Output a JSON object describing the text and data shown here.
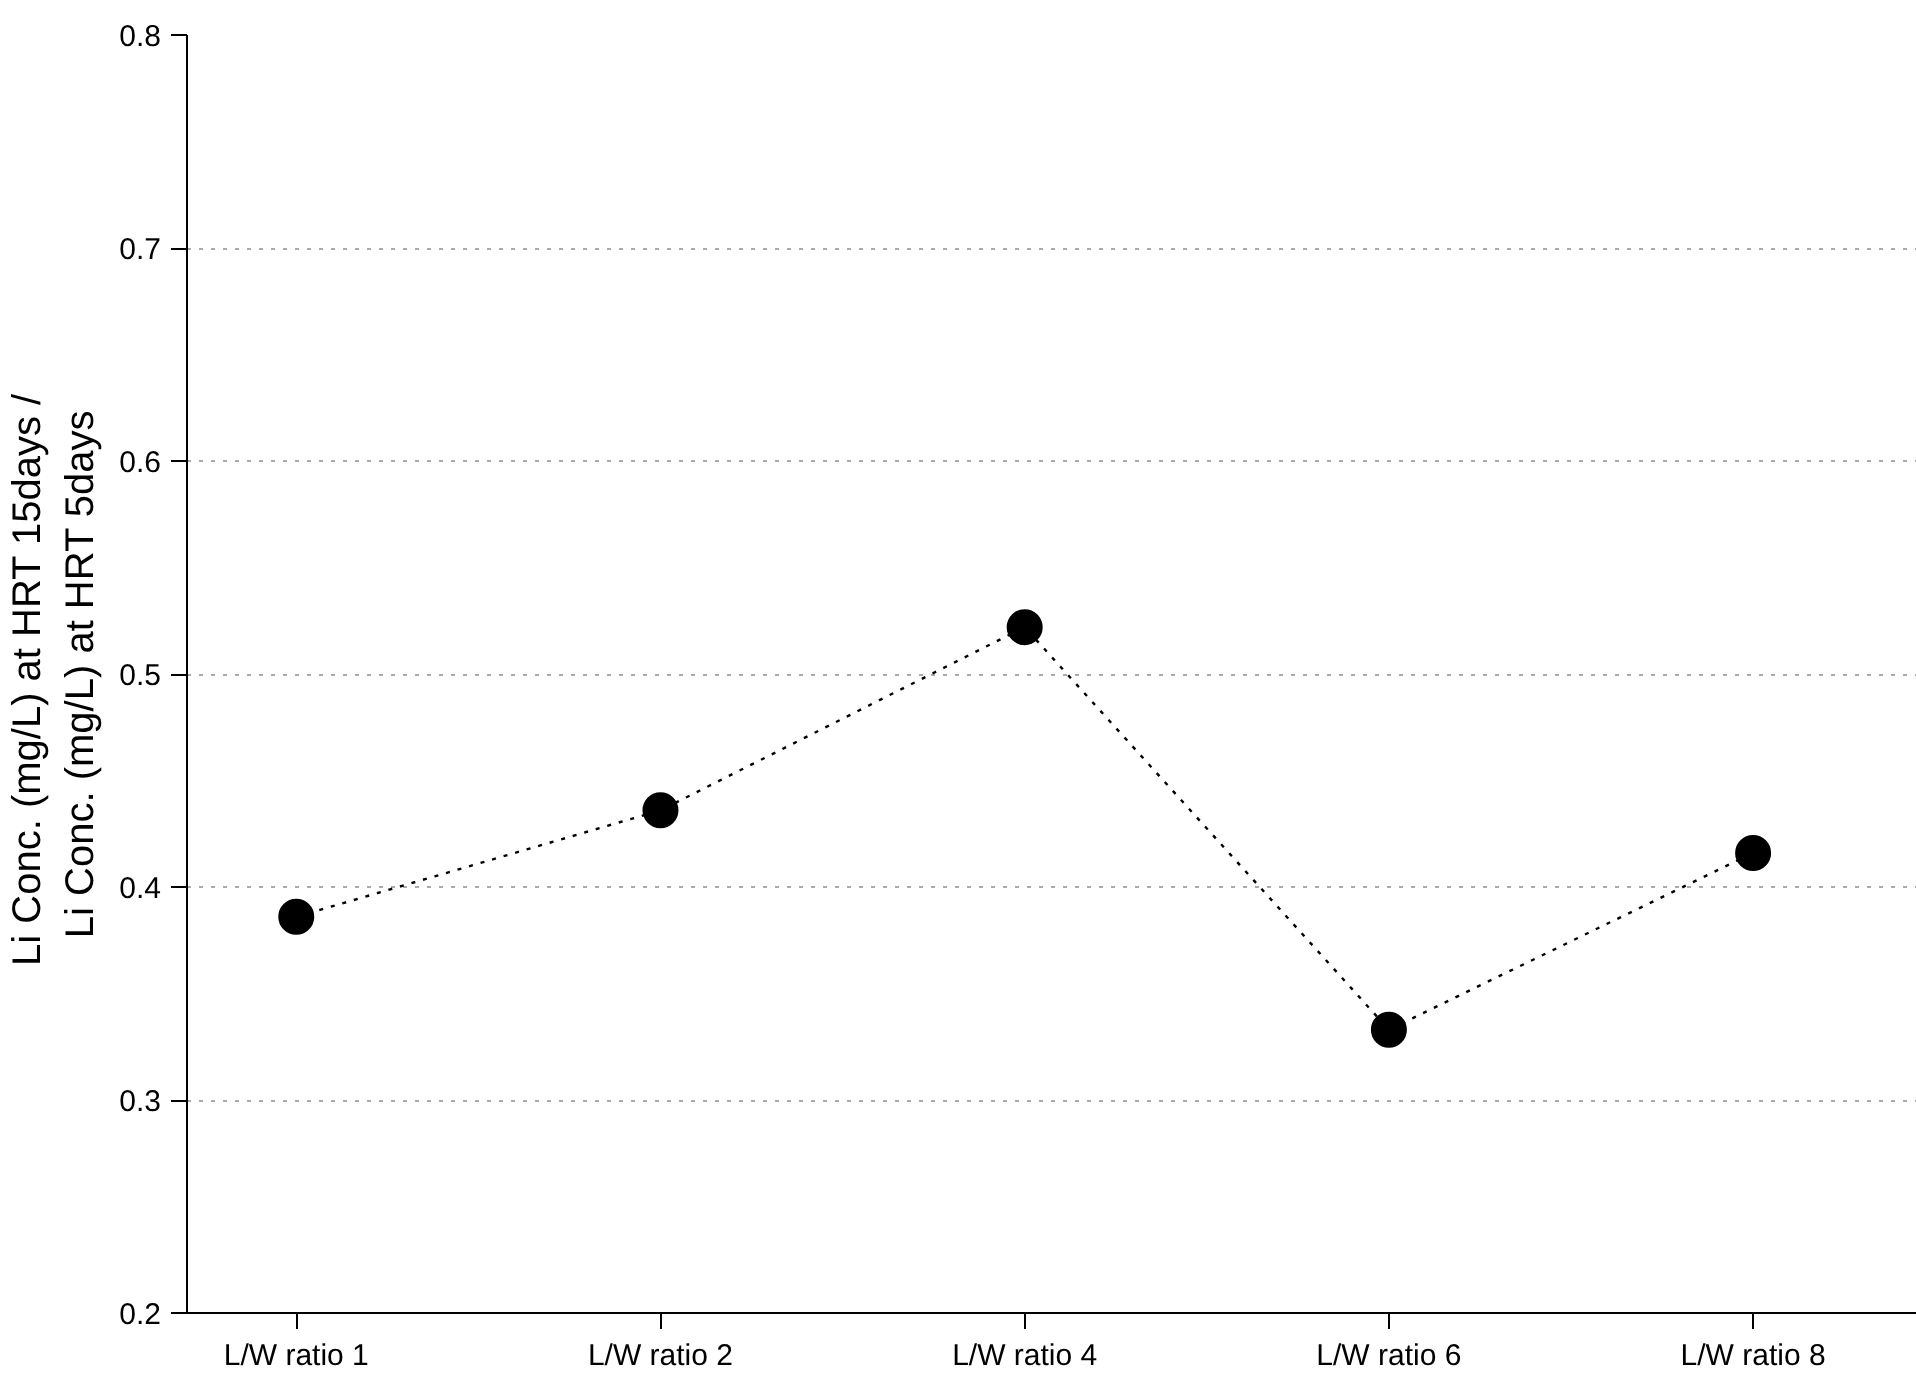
{
  "chart_data": {
    "type": "line",
    "ylabel": "Li Conc.  (mg/L) at HRT 15days /\nLi Conc. (mg/L) at HRT 5days",
    "categories": [
      "L/W ratio 1",
      "L/W ratio 2",
      "L/W ratio 4",
      "L/W ratio 6",
      "L/W ratio 8"
    ],
    "series": [
      {
        "color": "#000000",
        "values": [
          0.386,
          0.436,
          0.522,
          0.333,
          0.416
        ]
      }
    ],
    "ylim": [
      0.2,
      0.8
    ],
    "yticks": [
      {
        "value": 0.2,
        "label": "0.2"
      },
      {
        "value": 0.3,
        "label": "0.3"
      },
      {
        "value": 0.4,
        "label": "0.4"
      },
      {
        "value": 0.5,
        "label": "0.5"
      },
      {
        "value": 0.6,
        "label": "0.6"
      },
      {
        "value": 0.7,
        "label": "0.7"
      },
      {
        "value": 0.8,
        "label": "0.8"
      }
    ],
    "grid": "y",
    "marker": "circle",
    "line_style": "dotted"
  }
}
